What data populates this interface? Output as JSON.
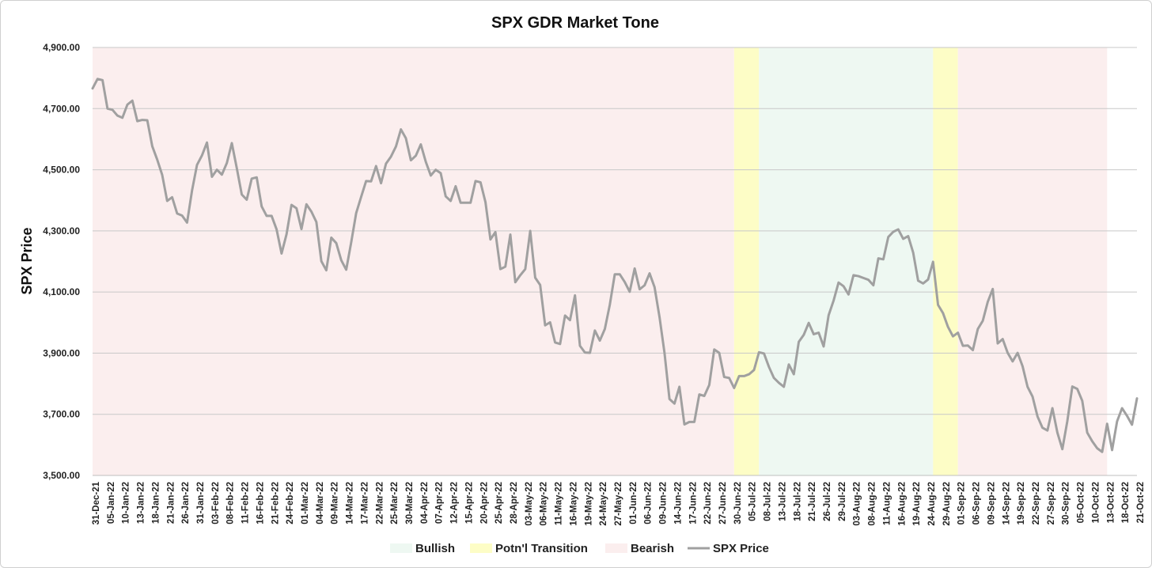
{
  "chart_data": {
    "type": "line",
    "title": "SPX GDR Market Tone",
    "xlabel": "",
    "ylabel": "SPX Price",
    "ylim": [
      3500,
      4900
    ],
    "ytick_values": [
      3500,
      3700,
      3900,
      4100,
      4300,
      4500,
      4700,
      4900
    ],
    "ytick_labels": [
      "3,500.00",
      "3,700.00",
      "3,900.00",
      "4,100.00",
      "4,300.00",
      "4,500.00",
      "4,700.00",
      "4,900.00"
    ],
    "grid": true,
    "legend_position": "bottom",
    "x_tick_labels": [
      "31-Dec-21",
      "05-Jan-22",
      "10-Jan-22",
      "13-Jan-22",
      "18-Jan-22",
      "21-Jan-22",
      "26-Jan-22",
      "31-Jan-22",
      "03-Feb-22",
      "08-Feb-22",
      "11-Feb-22",
      "16-Feb-22",
      "21-Feb-22",
      "24-Feb-22",
      "01-Mar-22",
      "04-Mar-22",
      "09-Mar-22",
      "14-Mar-22",
      "17-Mar-22",
      "22-Mar-22",
      "25-Mar-22",
      "30-Mar-22",
      "04-Apr-22",
      "07-Apr-22",
      "12-Apr-22",
      "15-Apr-22",
      "20-Apr-22",
      "25-Apr-22",
      "28-Apr-22",
      "03-May-22",
      "06-May-22",
      "11-May-22",
      "16-May-22",
      "19-May-22",
      "24-May-22",
      "27-May-22",
      "01-Jun-22",
      "06-Jun-22",
      "09-Jun-22",
      "14-Jun-22",
      "17-Jun-22",
      "22-Jun-22",
      "27-Jun-22",
      "30-Jun-22",
      "05-Jul-22",
      "08-Jul-22",
      "13-Jul-22",
      "18-Jul-22",
      "21-Jul-22",
      "26-Jul-22",
      "29-Jul-22",
      "03-Aug-22",
      "08-Aug-22",
      "11-Aug-22",
      "16-Aug-22",
      "19-Aug-22",
      "24-Aug-22",
      "29-Aug-22",
      "01-Sep-22",
      "06-Sep-22",
      "09-Sep-22",
      "14-Sep-22",
      "19-Sep-22",
      "22-Sep-22",
      "27-Sep-22",
      "30-Sep-22",
      "05-Oct-22",
      "10-Oct-22",
      "13-Oct-22",
      "18-Oct-22",
      "21-Oct-22"
    ],
    "regions": [
      {
        "tone": "Bearish",
        "start": 0,
        "end": 129
      },
      {
        "tone": "Potn'l Transition",
        "start": 129,
        "end": 134
      },
      {
        "tone": "Bullish",
        "start": 134,
        "end": 169
      },
      {
        "tone": "Potn'l Transition",
        "start": 169,
        "end": 174
      },
      {
        "tone": "Bearish",
        "start": 174,
        "end": 204
      }
    ],
    "series": [
      {
        "name": "SPX Price",
        "values": [
          4766,
          4797,
          4793,
          4700,
          4696,
          4677,
          4670,
          4713,
          4726,
          4659,
          4663,
          4662,
          4577,
          4533,
          4483,
          4398,
          4410,
          4357,
          4350,
          4327,
          4432,
          4516,
          4547,
          4589,
          4477,
          4500,
          4484,
          4522,
          4587,
          4505,
          4419,
          4402,
          4471,
          4475,
          4380,
          4349,
          4349,
          4305,
          4226,
          4289,
          4385,
          4374,
          4306,
          4387,
          4363,
          4329,
          4201,
          4171,
          4278,
          4260,
          4204,
          4173,
          4262,
          4358,
          4411,
          4463,
          4462,
          4512,
          4456,
          4520,
          4543,
          4576,
          4632,
          4603,
          4531,
          4546,
          4583,
          4526,
          4481,
          4500,
          4489,
          4413,
          4398,
          4446,
          4392,
          4392,
          4392,
          4463,
          4459,
          4394,
          4272,
          4296,
          4175,
          4183,
          4288,
          4132,
          4155,
          4175,
          4300,
          4147,
          4123,
          3991,
          4001,
          3935,
          3930,
          4023,
          4008,
          4089,
          3924,
          3902,
          3901,
          3974,
          3941,
          3979,
          4058,
          4158,
          4158,
          4133,
          4101,
          4177,
          4109,
          4122,
          4161,
          4116,
          4018,
          3901,
          3750,
          3735,
          3790,
          3667,
          3675,
          3675,
          3765,
          3760,
          3796,
          3912,
          3901,
          3822,
          3819,
          3786,
          3825,
          3825,
          3831,
          3845,
          3903,
          3899,
          3855,
          3819,
          3803,
          3790,
          3863,
          3831,
          3937,
          3960,
          3999,
          3962,
          3967,
          3922,
          4024,
          4072,
          4131,
          4119,
          4092,
          4155,
          4152,
          4146,
          4140,
          4122,
          4210,
          4207,
          4280,
          4297,
          4305,
          4274,
          4283,
          4229,
          4137,
          4128,
          4141,
          4199,
          4058,
          4031,
          3986,
          3955,
          3967,
          3924,
          3925,
          3910,
          3979,
          4006,
          4068,
          4110,
          3932,
          3946,
          3901,
          3873,
          3901,
          3857,
          3790,
          3758,
          3693,
          3656,
          3647,
          3720,
          3640,
          3586,
          3678,
          3791,
          3783,
          3744,
          3640,
          3612,
          3589,
          3577,
          3669,
          3583,
          3677,
          3720,
          3695,
          3666,
          3752
        ]
      }
    ],
    "legend": [
      {
        "label": "Bullish",
        "color": "#eef8f2"
      },
      {
        "label": "Potn'l Transition",
        "color": "#fdfdc6"
      },
      {
        "label": "Bearish",
        "color": "#fbeeee"
      },
      {
        "label": "SPX Price",
        "color": "#a0a0a0"
      }
    ],
    "colors": {
      "bearish": "#fbeeee",
      "transition": "#fdfdc6",
      "bullish": "#eef8f2",
      "line": "#a0a0a0",
      "grid": "#c8c8c8"
    }
  }
}
